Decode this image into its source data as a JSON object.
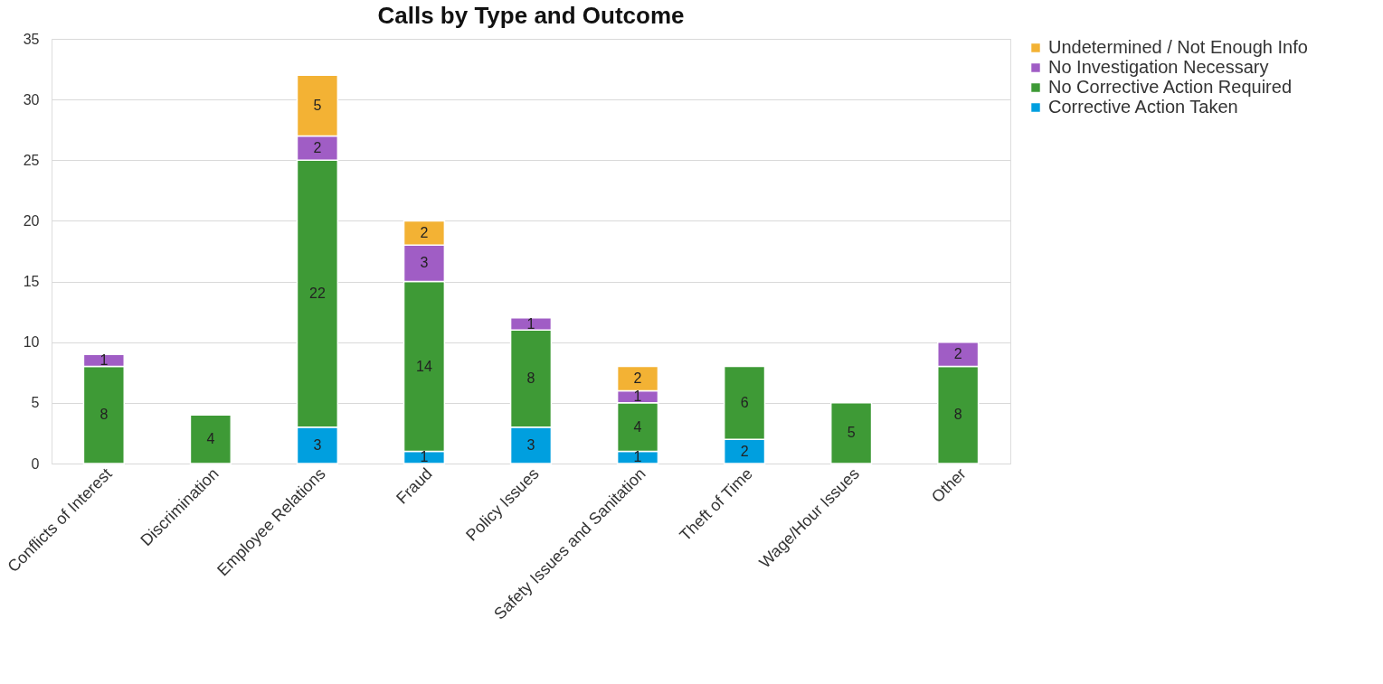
{
  "chart_data": {
    "type": "bar",
    "title": "Calls by Type and Outcome",
    "categories": [
      "Conflicts of Interest",
      "Discrimination",
      "Employee Relations",
      "Fraud",
      "Policy Issues",
      "Safety Issues and Sanitation",
      "Theft of Time",
      "Wage/Hour Issues",
      "Other"
    ],
    "series": [
      {
        "name": "Corrective Action Taken",
        "color": "#009fdf",
        "values": [
          null,
          null,
          3,
          1,
          3,
          1,
          2,
          null,
          null
        ]
      },
      {
        "name": "No Corrective Action Required",
        "color": "#3e9a36",
        "values": [
          8,
          4,
          22,
          14,
          8,
          4,
          6,
          5,
          8
        ]
      },
      {
        "name": "No Investigation Necessary",
        "color": "#a05dc5",
        "values": [
          1,
          null,
          2,
          3,
          1,
          1,
          null,
          null,
          2
        ]
      },
      {
        "name": "Undetermined / Not Enough Info",
        "color": "#f3b234",
        "values": [
          null,
          null,
          5,
          2,
          null,
          2,
          null,
          null,
          null
        ]
      }
    ],
    "stacked": true,
    "data_labels": true,
    "ylim": [
      0,
      35
    ],
    "yticks": [
      0,
      5,
      10,
      15,
      20,
      25,
      30,
      35
    ],
    "grid": "y",
    "legend": "right"
  }
}
